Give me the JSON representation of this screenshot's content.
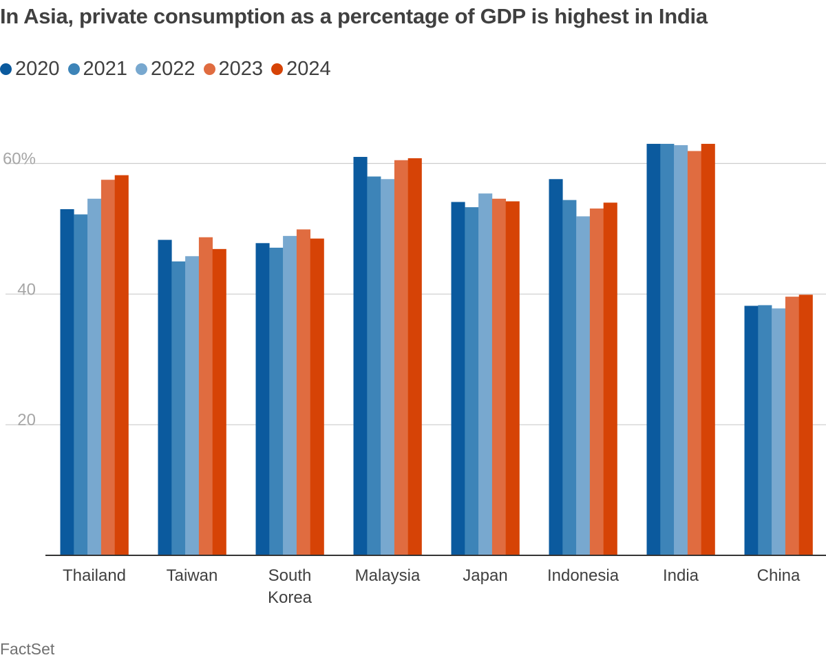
{
  "title": "In Asia, private consumption as a percentage of GDP is highest in India",
  "source": "FactSet",
  "chart_data": {
    "type": "bar",
    "title": "In Asia, private consumption as a percentage of GDP is highest in India",
    "xlabel": "",
    "ylabel": "",
    "ylim": [
      0,
      65
    ],
    "yticks": [
      20,
      40,
      60
    ],
    "ytick_labels": [
      "20",
      "40",
      "60%"
    ],
    "grid": true,
    "legend_position": "top-left",
    "categories": [
      "Thailand",
      "Taiwan",
      "South Korea",
      "Malaysia",
      "Japan",
      "Indonesia",
      "India",
      "China"
    ],
    "category_lines": [
      [
        "Thailand"
      ],
      [
        "Taiwan"
      ],
      [
        "South",
        "Korea"
      ],
      [
        "Malaysia"
      ],
      [
        "Japan"
      ],
      [
        "Indonesia"
      ],
      [
        "India"
      ],
      [
        "China"
      ]
    ],
    "series": [
      {
        "name": "2020",
        "color": "#0b5a9e",
        "values": [
          53.0,
          48.3,
          47.8,
          61.0,
          54.1,
          57.6,
          63.0,
          38.2
        ]
      },
      {
        "name": "2021",
        "color": "#3d84b8",
        "values": [
          52.2,
          45.0,
          47.1,
          58.0,
          53.3,
          54.4,
          63.0,
          38.3
        ]
      },
      {
        "name": "2022",
        "color": "#78a8cf",
        "values": [
          54.6,
          45.8,
          48.9,
          57.6,
          55.4,
          51.9,
          62.8,
          37.8
        ]
      },
      {
        "name": "2023",
        "color": "#e06c40",
        "values": [
          57.5,
          48.7,
          49.9,
          60.5,
          54.6,
          53.1,
          61.9,
          39.6
        ]
      },
      {
        "name": "2024",
        "color": "#d64306",
        "values": [
          58.2,
          46.9,
          48.5,
          60.8,
          54.2,
          54.0,
          63.0,
          39.9
        ]
      }
    ],
    "colors": {
      "grid": "#cccccc",
      "axis": "#333333",
      "tick_text": "#a6a6a6",
      "category_text": "#404040"
    }
  }
}
